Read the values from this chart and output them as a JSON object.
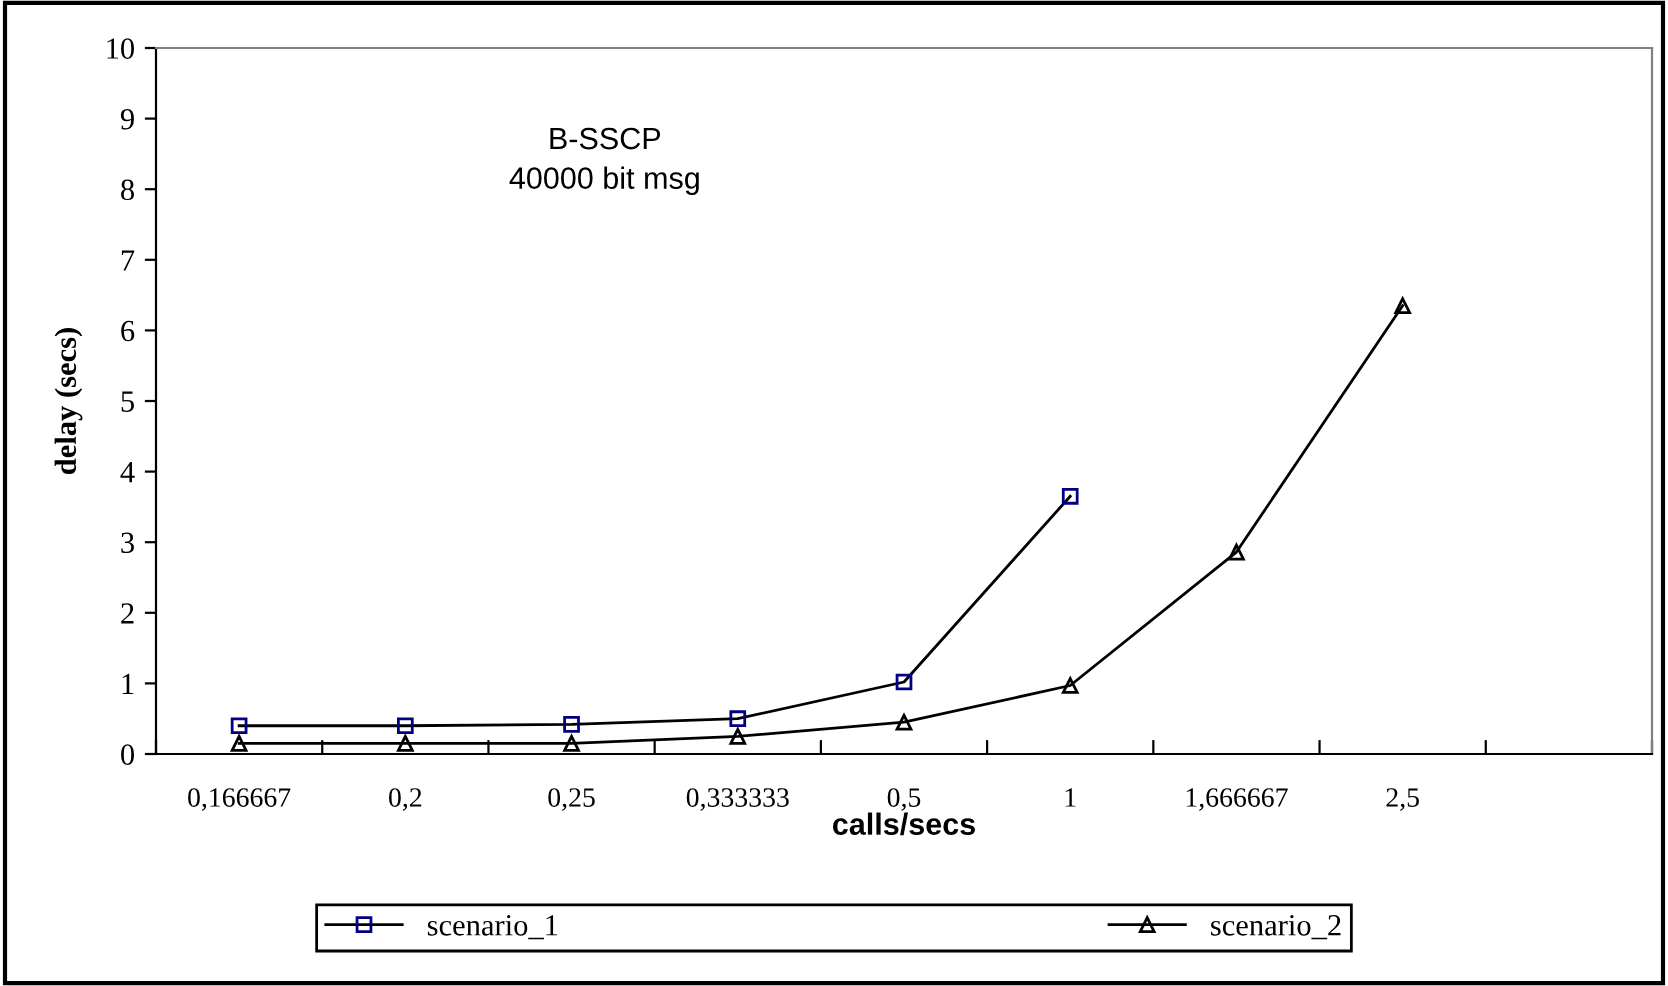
{
  "chart_data": {
    "type": "line",
    "categories": [
      "0,166667",
      "0,2",
      "0,25",
      "0,333333",
      "0,5",
      "1",
      "1,666667",
      "2,5",
      null
    ],
    "xlabel": "calls/secs",
    "ylabel": "delay (secs)",
    "ylim": [
      0,
      10
    ],
    "yticks": [
      0,
      1,
      2,
      3,
      4,
      5,
      6,
      7,
      8,
      9,
      10
    ],
    "annotations": [
      "B-SSCP\n40000 bit msg"
    ],
    "grid": false,
    "legend": "bottom",
    "series": [
      {
        "name": "scenario_1",
        "color": "#000080",
        "marker": "square",
        "values": [
          0.4,
          0.4,
          0.42,
          0.5,
          1.02,
          3.65,
          null,
          null,
          null
        ]
      },
      {
        "name": "scenario_2",
        "color": "#000000",
        "marker": "triangle",
        "values": [
          0.15,
          0.15,
          0.15,
          0.25,
          0.45,
          0.97,
          2.86,
          6.35,
          null
        ]
      }
    ]
  }
}
